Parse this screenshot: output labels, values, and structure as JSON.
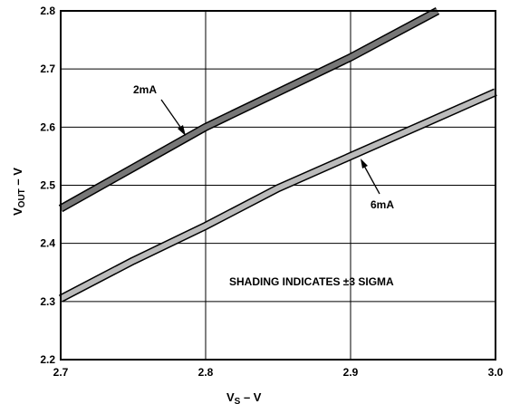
{
  "chart_data": {
    "type": "line",
    "xlabel_main": "V",
    "xlabel_sub": "S",
    "xlabel_unit": " – V",
    "ylabel_main": "V",
    "ylabel_sub": "OUT",
    "ylabel_unit": " – V",
    "xlim": [
      2.7,
      3.0
    ],
    "ylim": [
      2.2,
      2.8
    ],
    "x_ticks": [
      2.7,
      2.8,
      2.9,
      3.0
    ],
    "x_tick_labels": [
      "2.7",
      "2.8",
      "2.9",
      "3.0"
    ],
    "y_ticks": [
      2.2,
      2.3,
      2.4,
      2.5,
      2.6,
      2.7,
      2.8
    ],
    "y_tick_labels": [
      "2.2",
      "2.3",
      "2.4",
      "2.5",
      "2.6",
      "2.7",
      "2.8"
    ],
    "grid": true,
    "series": [
      {
        "name": "2mA",
        "color": "#777777",
        "x": [
          2.7,
          2.75,
          2.8,
          2.85,
          2.9,
          2.96
        ],
        "y": [
          2.46,
          2.53,
          2.6,
          2.66,
          2.72,
          2.8
        ]
      },
      {
        "name": "6mA",
        "color": "#bbbbbb",
        "x": [
          2.7,
          2.75,
          2.8,
          2.85,
          2.9,
          2.95,
          3.0
        ],
        "y": [
          2.305,
          2.37,
          2.43,
          2.495,
          2.55,
          2.605,
          2.66
        ]
      }
    ],
    "annotation": "SHADING INDICATES ±3 SIGMA"
  }
}
